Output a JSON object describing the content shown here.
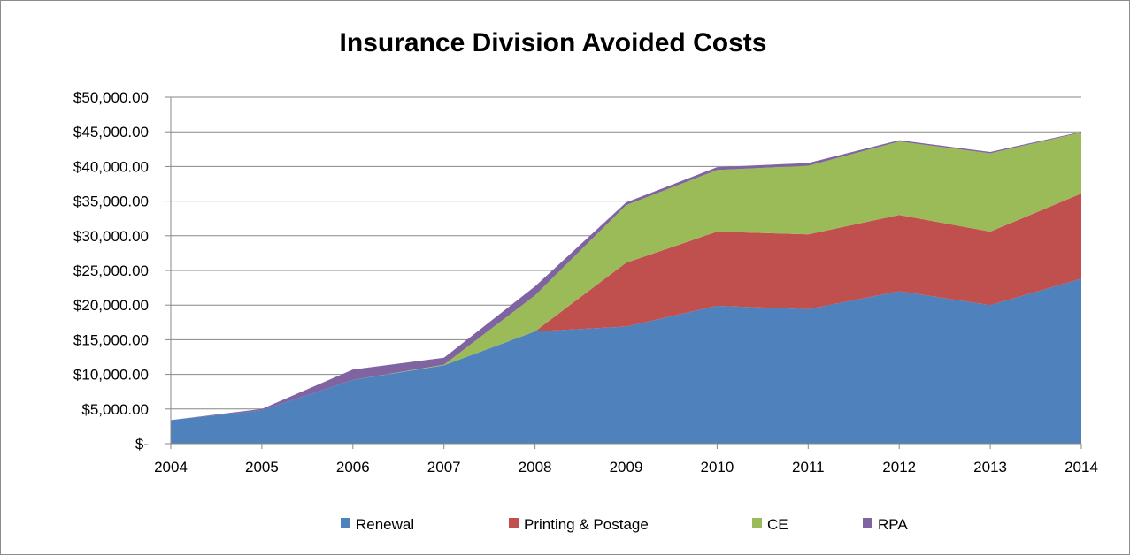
{
  "chart_data": {
    "type": "area",
    "stacked": true,
    "title": "Insurance Division Avoided Costs",
    "xlabel": "",
    "ylabel": "",
    "categories": [
      "2004",
      "2005",
      "2006",
      "2007",
      "2008",
      "2009",
      "2010",
      "2011",
      "2012",
      "2013",
      "2014"
    ],
    "ylim": [
      0,
      50000
    ],
    "y_tick_labels": [
      "$-",
      "$5,000.00",
      "$10,000.00",
      "$15,000.00",
      "$20,000.00",
      "$25,000.00",
      "$30,000.00",
      "$35,000.00",
      "$40,000.00",
      "$45,000.00",
      "$50,000.00"
    ],
    "grid": true,
    "legend_position": "bottom",
    "series": [
      {
        "name": "Renewal",
        "color": "#4f81bd",
        "values": [
          3400,
          4800,
          9200,
          11300,
          16200,
          16900,
          19900,
          19400,
          22000,
          20000,
          23800
        ]
      },
      {
        "name": "Printing & Postage",
        "color": "#c0504d",
        "values": [
          0,
          0,
          0,
          0,
          0,
          9200,
          10700,
          10800,
          11000,
          10600,
          12300
        ]
      },
      {
        "name": "CE",
        "color": "#9bbb59",
        "values": [
          0,
          0,
          0,
          100,
          5200,
          8300,
          8900,
          9900,
          10600,
          11300,
          8800
        ]
      },
      {
        "name": "RPA",
        "color": "#8064a2",
        "values": [
          0,
          200,
          1500,
          1000,
          1300,
          400,
          400,
          400,
          200,
          200,
          100
        ]
      }
    ]
  }
}
